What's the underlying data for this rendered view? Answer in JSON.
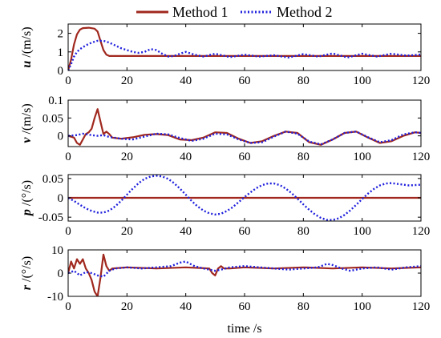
{
  "legend": {
    "entries": [
      {
        "label": "Method 1",
        "color": "#a0281e",
        "style": "solid"
      },
      {
        "label": "Method 2",
        "color": "#1f1fdd",
        "style": "dotted"
      }
    ],
    "placement": "top-center"
  },
  "xlabel": "time /s",
  "chart_data": [
    {
      "type": "line",
      "ylabel_var": "u",
      "ylabel_unit": " /(m/s)",
      "xlim": [
        0,
        120
      ],
      "ylim": [
        0,
        2.5
      ],
      "xticks": [
        0,
        20,
        40,
        60,
        80,
        100,
        120
      ],
      "yticks": [
        0,
        1,
        2
      ],
      "series": [
        {
          "name": "Method 1",
          "x": [
            0,
            1,
            2,
            3,
            4,
            5,
            7,
            9,
            10,
            11,
            12,
            13,
            14,
            15,
            20,
            120
          ],
          "y": [
            0,
            0.6,
            1.4,
            1.95,
            2.2,
            2.28,
            2.3,
            2.25,
            2.1,
            1.6,
            1.1,
            0.85,
            0.78,
            0.78,
            0.78,
            0.78
          ]
        },
        {
          "name": "Method 2",
          "x": [
            0,
            1,
            2,
            3,
            4,
            6,
            8,
            10,
            12,
            14,
            16,
            18,
            20,
            22,
            24,
            26,
            28,
            30,
            32,
            34,
            36,
            38,
            40,
            43,
            46,
            50,
            55,
            60,
            65,
            70,
            75,
            80,
            85,
            90,
            95,
            100,
            105,
            110,
            115,
            120
          ],
          "y": [
            0,
            0.35,
            0.75,
            1.0,
            1.15,
            1.35,
            1.5,
            1.6,
            1.6,
            1.5,
            1.35,
            1.2,
            1.1,
            1.0,
            0.95,
            1.0,
            1.15,
            1.1,
            0.9,
            0.75,
            0.78,
            0.9,
            1.0,
            0.85,
            0.75,
            0.9,
            0.72,
            0.85,
            0.75,
            0.82,
            0.7,
            0.88,
            0.75,
            0.92,
            0.7,
            0.9,
            0.75,
            0.9,
            0.8,
            0.85
          ]
        }
      ]
    },
    {
      "type": "line",
      "ylabel_var": "v",
      "ylabel_unit": " /(m/s)",
      "xlim": [
        0,
        120
      ],
      "ylim": [
        -0.03,
        0.1
      ],
      "xticks": [
        0,
        20,
        40,
        60,
        80,
        100,
        120
      ],
      "yticks": [
        0,
        0.05,
        0.1
      ],
      "series": [
        {
          "name": "Method 1",
          "x": [
            0,
            2,
            3,
            4,
            5,
            6,
            7,
            8,
            9,
            10,
            11,
            12,
            13,
            14,
            15,
            18,
            22,
            26,
            30,
            34,
            38,
            42,
            46,
            50,
            54,
            58,
            62,
            66,
            70,
            74,
            78,
            82,
            86,
            90,
            94,
            98,
            102,
            106,
            110,
            114,
            118,
            120
          ],
          "y": [
            0,
            -0.005,
            -0.02,
            -0.025,
            -0.01,
            0.005,
            0.01,
            0.02,
            0.05,
            0.075,
            0.04,
            0.005,
            0.012,
            0.005,
            -0.005,
            -0.008,
            -0.004,
            0.003,
            0.005,
            0.002,
            -0.01,
            -0.012,
            -0.005,
            0.01,
            0.008,
            -0.008,
            -0.02,
            -0.015,
            0.0,
            0.012,
            0.008,
            -0.018,
            -0.025,
            -0.01,
            0.008,
            0.012,
            -0.005,
            -0.02,
            -0.015,
            0.0,
            0.01,
            0.008
          ]
        },
        {
          "name": "Method 2",
          "x": [
            0,
            3,
            5,
            8,
            10,
            12,
            14,
            18,
            22,
            26,
            30,
            34,
            38,
            42,
            46,
            50,
            54,
            58,
            62,
            66,
            70,
            74,
            78,
            82,
            86,
            90,
            94,
            98,
            102,
            106,
            110,
            114,
            118,
            120
          ],
          "y": [
            0,
            0.002,
            0.006,
            0.002,
            0.0,
            0.002,
            -0.003,
            -0.008,
            -0.01,
            -0.002,
            0.006,
            0.004,
            -0.006,
            -0.014,
            -0.008,
            0.006,
            0.004,
            -0.01,
            -0.02,
            -0.018,
            -0.002,
            0.012,
            0.006,
            -0.016,
            -0.024,
            -0.01,
            0.008,
            0.012,
            -0.004,
            -0.018,
            -0.012,
            0.004,
            0.01,
            0.008
          ]
        }
      ]
    },
    {
      "type": "line",
      "ylabel_var": "p",
      "ylabel_unit": " /(°/s)",
      "xlim": [
        0,
        120
      ],
      "ylim": [
        -0.06,
        0.06
      ],
      "xticks": [
        0,
        20,
        40,
        60,
        80,
        100,
        120
      ],
      "yticks": [
        -0.05,
        0,
        0.05
      ],
      "series": [
        {
          "name": "Method 1",
          "x": [
            0,
            120
          ],
          "y": [
            0,
            0
          ]
        },
        {
          "name": "Method 2",
          "x": [
            0,
            2,
            4,
            6,
            8,
            10,
            12,
            14,
            16,
            18,
            20,
            22,
            24,
            26,
            28,
            30,
            32,
            34,
            36,
            38,
            40,
            42,
            44,
            46,
            48,
            50,
            52,
            54,
            56,
            58,
            60,
            62,
            64,
            66,
            68,
            70,
            72,
            74,
            76,
            78,
            80,
            82,
            84,
            86,
            88,
            90,
            92,
            94,
            96,
            98,
            100,
            102,
            104,
            106,
            108,
            110,
            112,
            114,
            116,
            118,
            120
          ],
          "y": [
            0,
            -0.008,
            -0.018,
            -0.027,
            -0.034,
            -0.038,
            -0.038,
            -0.033,
            -0.022,
            -0.008,
            0.008,
            0.024,
            0.038,
            0.049,
            0.055,
            0.057,
            0.055,
            0.049,
            0.038,
            0.024,
            0.008,
            -0.008,
            -0.022,
            -0.033,
            -0.04,
            -0.043,
            -0.041,
            -0.034,
            -0.024,
            -0.011,
            0.002,
            0.014,
            0.025,
            0.033,
            0.037,
            0.037,
            0.033,
            0.024,
            0.012,
            -0.002,
            -0.017,
            -0.031,
            -0.043,
            -0.052,
            -0.057,
            -0.057,
            -0.053,
            -0.044,
            -0.032,
            -0.018,
            -0.003,
            0.011,
            0.023,
            0.032,
            0.037,
            0.038,
            0.036,
            0.034,
            0.032,
            0.033,
            0.034
          ]
        }
      ]
    },
    {
      "type": "line",
      "ylabel_var": "r",
      "ylabel_unit": " /(°/s)",
      "xlim": [
        0,
        120
      ],
      "ylim": [
        -10,
        10
      ],
      "xticks": [
        0,
        20,
        40,
        60,
        80,
        100,
        120
      ],
      "yticks": [
        -10,
        0,
        10
      ],
      "series": [
        {
          "name": "Method 1",
          "x": [
            0,
            1,
            2,
            3,
            4,
            5,
            6,
            7,
            8,
            9,
            10,
            11,
            12,
            13,
            14,
            15,
            20,
            30,
            40,
            48,
            49,
            50,
            51,
            52,
            53,
            55,
            60,
            70,
            80,
            90,
            100,
            110,
            120
          ],
          "y": [
            0,
            5,
            2,
            6,
            4,
            6,
            2,
            0,
            -3,
            -8,
            -10,
            -2,
            8,
            3,
            1,
            2,
            2.5,
            2,
            2.5,
            2,
            0,
            -1,
            2,
            3,
            2,
            2,
            2.5,
            2,
            2.5,
            2,
            2.5,
            2,
            2.5
          ]
        },
        {
          "name": "Method 2",
          "x": [
            0,
            2,
            4,
            6,
            8,
            10,
            12,
            14,
            16,
            20,
            25,
            30,
            35,
            38,
            40,
            43,
            46,
            50,
            52,
            55,
            60,
            65,
            70,
            75,
            80,
            85,
            88,
            90,
            93,
            96,
            100,
            105,
            110,
            115,
            120
          ],
          "y": [
            0,
            1,
            -1,
            0.5,
            0,
            -1,
            -1.5,
            1,
            2,
            2.5,
            2,
            2.5,
            3,
            4.5,
            5,
            3,
            2,
            1,
            1.5,
            2.5,
            3,
            2.5,
            2,
            1.5,
            2,
            2.5,
            4,
            3.5,
            2,
            1,
            2,
            2.5,
            1.5,
            2.5,
            3
          ]
        }
      ]
    }
  ]
}
